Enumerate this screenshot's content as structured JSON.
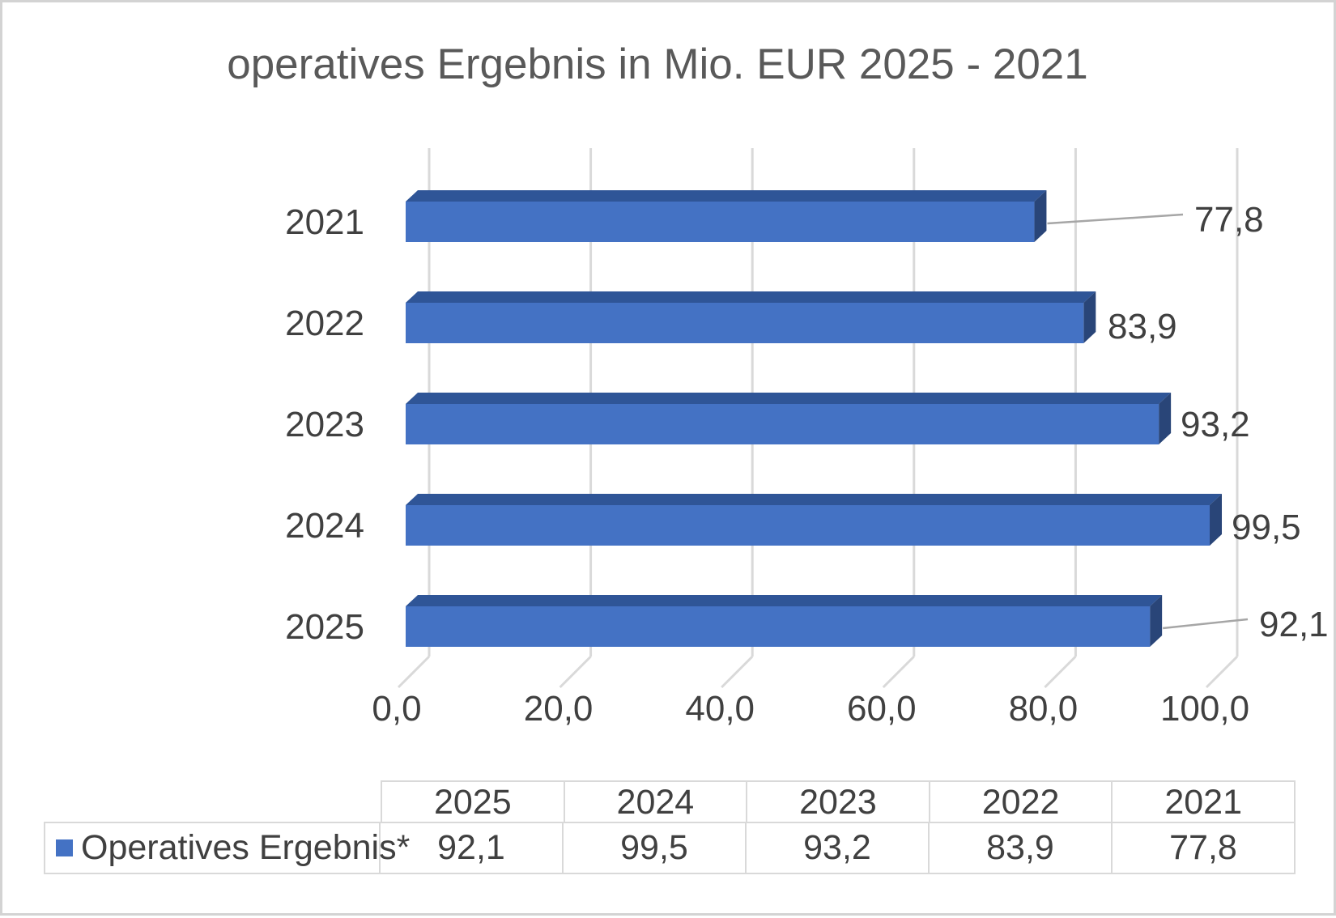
{
  "title": "operatives Ergebnis in Mio. EUR 2025 - 2021",
  "chart_data": {
    "type": "bar",
    "orientation": "horizontal",
    "style": "3d",
    "title": "operatives Ergebnis in Mio. EUR 2025 - 2021",
    "categories": [
      "2021",
      "2022",
      "2023",
      "2024",
      "2025"
    ],
    "values": [
      77.8,
      83.9,
      93.2,
      99.5,
      92.1
    ],
    "value_labels": [
      "77,8",
      "83,9",
      "93,2",
      "99,5",
      "92,1"
    ],
    "series": [
      {
        "name": "Operatives Ergebnis*",
        "values": [
          77.8,
          83.9,
          93.2,
          99.5,
          92.1
        ]
      }
    ],
    "xlabel": "",
    "ylabel": "",
    "xlim": [
      0,
      100
    ],
    "x_tick_labels": [
      "0,0",
      "20,0",
      "40,0",
      "60,0",
      "80,0",
      "100,0"
    ],
    "grid": true,
    "legend_position": "bottom-table",
    "colors": {
      "bar_front": "#4472c4",
      "bar_top": "#2f5597",
      "bar_side": "#294578",
      "gridline": "#d9d9d9",
      "leader_line": "#a6a6a6",
      "label_text": "#404040",
      "title_text": "#595959",
      "table_border": "#d9d9d9"
    }
  },
  "data_table": {
    "columns": [
      "2025",
      "2024",
      "2023",
      "2022",
      "2021"
    ],
    "row_label": "Operatives Ergebnis*",
    "row_values": [
      "92,1",
      "99,5",
      "93,2",
      "83,9",
      "77,8"
    ]
  }
}
